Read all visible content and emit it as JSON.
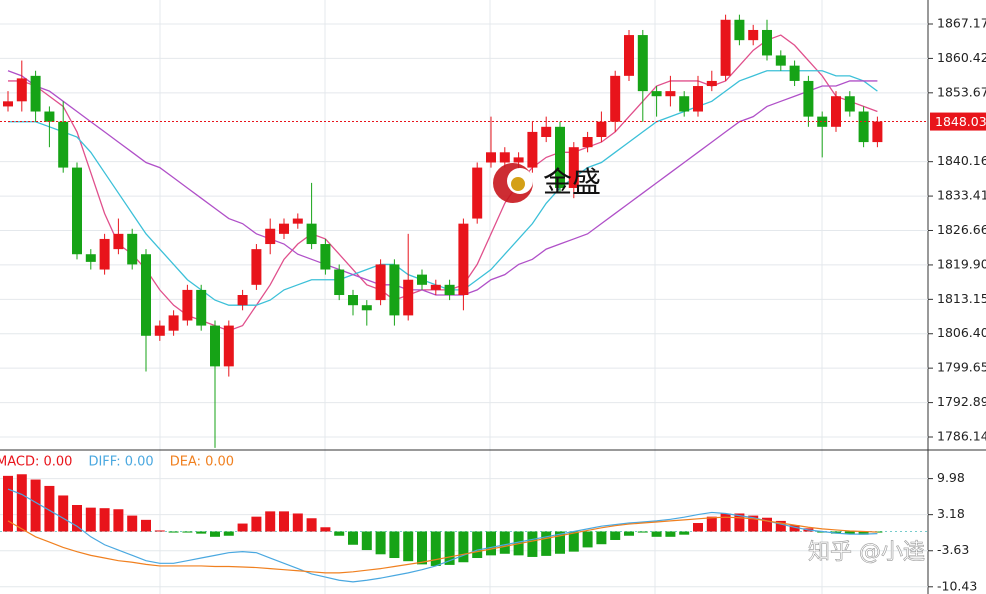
{
  "chart_data": [
    {
      "type": "candlestick",
      "up_color": "#e8141b",
      "down_color": "#16a316",
      "grid": true,
      "ylim": [
        1783.59,
        1871.88
      ],
      "yticks": [
        1867.17,
        1860.42,
        1853.67,
        1840.16,
        1833.41,
        1826.66,
        {
          "value": 1819.9,
          "label": "1819.90"
        },
        1813.15,
        {
          "value": 1806.4,
          "label": "1806.40"
        },
        1799.65,
        1792.89,
        1786.14
      ],
      "last_price": 1848.03,
      "last_price_color": "#e8141b",
      "open": [
        1851,
        1852,
        1857,
        1850,
        1848,
        1839,
        1822,
        1819,
        1823,
        1826,
        1822,
        1806,
        1807,
        1809,
        1815,
        1808,
        1800,
        1812,
        1816,
        1824,
        1826,
        1828,
        1828,
        1824,
        1819,
        1814,
        1812,
        1813,
        1820,
        1810,
        1818,
        1815,
        1816,
        1814,
        1829,
        1840,
        1840,
        1840,
        1839,
        1845,
        1847,
        1835,
        1843,
        1845,
        1848,
        1857,
        1865,
        1854,
        1853,
        1853,
        1850,
        1855,
        1857,
        1868,
        1864,
        1866,
        1861,
        1859,
        1856,
        1849,
        1847,
        1853,
        1850,
        1844
      ],
      "high": [
        1854,
        1860,
        1858,
        1851,
        1852,
        1840,
        1823,
        1826,
        1829,
        1827,
        1823,
        1809,
        1811,
        1816,
        1816,
        1809,
        1809,
        1815,
        1824,
        1829,
        1829,
        1830,
        1836,
        1825,
        1820,
        1815,
        1813,
        1821,
        1821,
        1826,
        1819,
        1817,
        1817,
        1829,
        1840,
        1849,
        1843,
        1842,
        1848,
        1849,
        1848,
        1844,
        1846,
        1850,
        1858,
        1866,
        1866,
        1855,
        1857,
        1854,
        1857,
        1858,
        1869,
        1869,
        1867,
        1868,
        1862,
        1860,
        1857,
        1850,
        1854,
        1854,
        1851,
        1849
      ],
      "low": [
        1850,
        1850,
        1848,
        1843,
        1838,
        1821,
        1819,
        1818,
        1822,
        1819,
        1799,
        1805,
        1806,
        1808,
        1807,
        1784,
        1798,
        1811,
        1815,
        1822,
        1825,
        1827,
        1823,
        1818,
        1813,
        1810,
        1808,
        1812,
        1808,
        1809,
        1815,
        1814,
        1813,
        1811,
        1828,
        1839,
        1839,
        1836,
        1838,
        1844,
        1834,
        1833,
        1842,
        1844,
        1846,
        1856,
        1848,
        1849,
        1851,
        1849,
        1849,
        1854,
        1856,
        1863,
        1863,
        1860,
        1858,
        1855,
        1847,
        1841,
        1846,
        1849,
        1843,
        1843
      ],
      "close": [
        1852,
        1856.5,
        1850,
        1848,
        1839,
        1822,
        1820.5,
        1825,
        1826,
        1820,
        1806,
        1808,
        1810,
        1815,
        1808,
        1800,
        1808,
        1814,
        1823,
        1827,
        1828,
        1829,
        1824,
        1819,
        1814,
        1812,
        1811,
        1820,
        1810,
        1817,
        1816,
        1816,
        1814,
        1828,
        1839,
        1842,
        1842,
        1841,
        1846,
        1847,
        1835,
        1843,
        1845,
        1848,
        1857,
        1865,
        1854,
        1853,
        1854,
        1850,
        1855,
        1856,
        1868,
        1864,
        1866,
        1861,
        1859,
        1856,
        1849,
        1847,
        1853,
        1850,
        1844,
        1848.03
      ],
      "lines": [
        {
          "color": "#e0508c",
          "values": [
            1856,
            1856,
            1855,
            1853,
            1851,
            1846,
            1838,
            1830,
            1824,
            1822,
            1819,
            1815,
            1812,
            1810,
            1809,
            1808,
            1807,
            1808,
            1812,
            1816,
            1821,
            1824,
            1826,
            1825,
            1822,
            1819,
            1816,
            1815,
            1813,
            1814,
            1815,
            1815,
            1815,
            1816,
            1820,
            1826,
            1832,
            1836,
            1839,
            1841,
            1842,
            1842,
            1843,
            1844,
            1846,
            1849,
            1852,
            1855,
            1856,
            1856,
            1856,
            1855,
            1856,
            1859,
            1862,
            1864,
            1865,
            1863,
            1860,
            1857,
            1853,
            1852,
            1851,
            1850
          ]
        },
        {
          "color": "#3cc0d8",
          "values": [
            1848,
            1848,
            1848,
            1847,
            1846,
            1845,
            1842,
            1838,
            1834,
            1830,
            1826,
            1823,
            1820,
            1817,
            1815,
            1813,
            1812,
            1812,
            1812,
            1813,
            1815,
            1816,
            1817,
            1817,
            1817,
            1818,
            1819,
            1820,
            1820,
            1818,
            1817,
            1816,
            1815,
            1815,
            1817,
            1819,
            1822,
            1825,
            1828,
            1832,
            1835,
            1837,
            1839,
            1840,
            1842,
            1844,
            1846,
            1848,
            1849,
            1850,
            1851,
            1852,
            1854,
            1856,
            1857,
            1858,
            1858,
            1858,
            1858,
            1858,
            1857,
            1857,
            1856,
            1854
          ]
        },
        {
          "color": "#b050c8",
          "values": [
            1858,
            1857,
            1855,
            1854,
            1852,
            1850,
            1848,
            1846,
            1844,
            1842,
            1840,
            1839,
            1837,
            1835,
            1833,
            1831,
            1829,
            1828,
            1826,
            1825,
            1824,
            1822,
            1821,
            1820,
            1819,
            1818,
            1817,
            1816,
            1816,
            1815,
            1815,
            1814,
            1814,
            1814,
            1815,
            1817,
            1818,
            1820,
            1821,
            1823,
            1824,
            1825,
            1826,
            1828,
            1830,
            1832,
            1834,
            1836,
            1838,
            1840,
            1842,
            1844,
            1846,
            1848,
            1849,
            1851,
            1852,
            1853,
            1854,
            1855,
            1855,
            1856,
            1856,
            1856
          ]
        }
      ],
      "watermark": "金盛"
    },
    {
      "type": "macd",
      "legend": [
        {
          "label": "MACD: 0.00",
          "color": "#e8141b"
        },
        {
          "label": "DIFF: 0.00",
          "color": "#4aa8e0"
        },
        {
          "label": "DEA: 0.00",
          "color": "#f08020"
        }
      ],
      "ylim": [
        -11.79,
        15.0
      ],
      "yticks": [
        9.98,
        3.18,
        -3.63,
        -10.43
      ],
      "up_color": "#e8141b",
      "down_color": "#16a316",
      "values": [
        10.5,
        10.8,
        9.8,
        8.6,
        6.8,
        5,
        4.5,
        4.4,
        4.2,
        3,
        2.2,
        0.2,
        -0.2,
        -0.2,
        -0.4,
        -1,
        -0.8,
        1.5,
        2.8,
        3.8,
        3.8,
        3.4,
        2.5,
        0.8,
        -0.8,
        -2.5,
        -3.5,
        -4.3,
        -5,
        -5.6,
        -6.2,
        -6.5,
        -6.3,
        -5.8,
        -5,
        -4.5,
        -4.2,
        -4.5,
        -4.8,
        -4.6,
        -4.2,
        -3.8,
        -3,
        -2.4,
        -1.6,
        -0.8,
        -0.2,
        -1,
        -1,
        -0.6,
        1.6,
        2.8,
        3.4,
        3.4,
        3,
        2.6,
        2,
        1.2,
        0.6,
        -0.2,
        -0.4,
        -0.4,
        -0.6,
        -0.2
      ],
      "series": [
        {
          "name": "DIFF",
          "color": "#4aa8e0",
          "values": [
            8,
            7,
            5.5,
            4,
            2.5,
            1,
            -1,
            -2.5,
            -3.5,
            -4.5,
            -5.5,
            -6,
            -6,
            -5.5,
            -5,
            -4.5,
            -4,
            -3.8,
            -4,
            -5,
            -6,
            -7,
            -8,
            -8.6,
            -9.2,
            -9.5,
            -9.2,
            -8.8,
            -8.3,
            -7.8,
            -7.2,
            -6.5,
            -5.5,
            -4.5,
            -3.5,
            -3,
            -2.5,
            -2,
            -1.5,
            -1,
            -0.5,
            0,
            0.5,
            1,
            1.3,
            1.6,
            1.8,
            2,
            2.3,
            2.7,
            3.2,
            3.6,
            3.4,
            3,
            2.6,
            2,
            1.4,
            0.8,
            0.3,
            0,
            -0.3,
            -0.5,
            -0.5,
            -0.4
          ]
        },
        {
          "name": "DEA",
          "color": "#f08020",
          "values": [
            2,
            0.5,
            -1,
            -2,
            -3,
            -3.8,
            -4.5,
            -5,
            -5.5,
            -5.8,
            -6.2,
            -6.5,
            -6.5,
            -6.5,
            -6.5,
            -6.6,
            -6.6,
            -6.7,
            -6.8,
            -7,
            -7.2,
            -7.4,
            -7.6,
            -7.8,
            -7.8,
            -7.6,
            -7.3,
            -7,
            -6.6,
            -6.2,
            -5.8,
            -5.3,
            -4.8,
            -4.3,
            -3.8,
            -3.3,
            -2.8,
            -2.3,
            -1.8,
            -1.3,
            -0.8,
            -0.3,
            0.2,
            0.7,
            1.1,
            1.4,
            1.6,
            1.8,
            2,
            2.2,
            2.4,
            2.6,
            2.7,
            2.6,
            2.4,
            2,
            1.6,
            1.2,
            0.8,
            0.5,
            0.3,
            0.1,
            0,
            -0.1
          ]
        }
      ],
      "watermark": "知乎 @小逵"
    }
  ]
}
